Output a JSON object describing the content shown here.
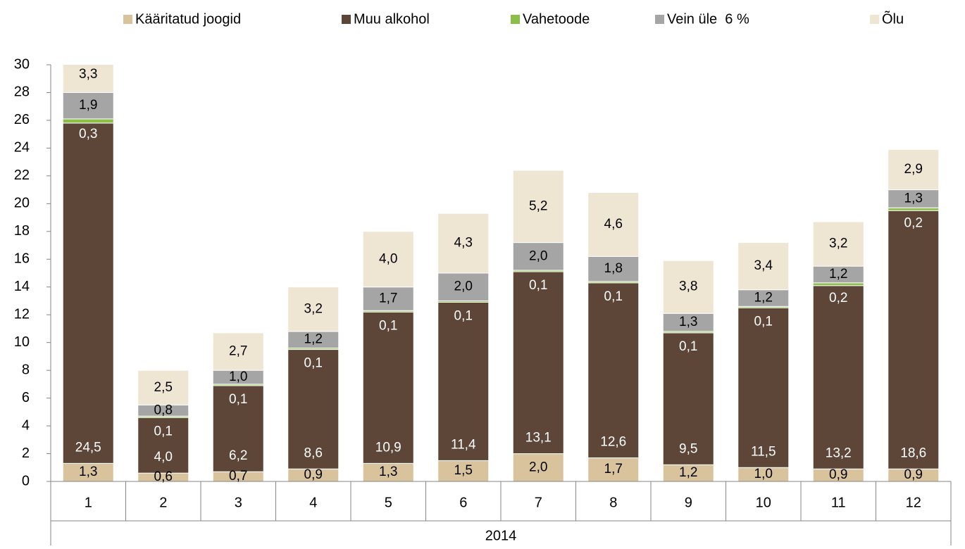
{
  "chart_data": {
    "type": "stacked-bar",
    "categories": [
      "1",
      "2",
      "3",
      "4",
      "5",
      "6",
      "7",
      "8",
      "9",
      "10",
      "11",
      "12"
    ],
    "category_group": "2014",
    "series": [
      {
        "name": "Kääritatud joogid",
        "color": "#d8c39d",
        "values": [
          1.3,
          0.6,
          0.7,
          0.9,
          1.3,
          1.5,
          2.0,
          1.7,
          1.2,
          1.0,
          0.9,
          0.9
        ],
        "value_labels": [
          "1,3",
          "0,6",
          "0,7",
          "0,9",
          "1,3",
          "1,5",
          "2,0",
          "1,7",
          "1,2",
          "1,0",
          "0,9",
          "0,9"
        ]
      },
      {
        "name": "Muu alkohol",
        "color": "#5d4637",
        "values": [
          24.5,
          4.0,
          6.2,
          8.6,
          10.9,
          11.4,
          13.1,
          12.6,
          9.5,
          11.5,
          13.2,
          18.6
        ],
        "value_labels": [
          "24,5",
          "4,0",
          "6,2",
          "8,6",
          "10,9",
          "11,4",
          "13,1",
          "12,6",
          "9,5",
          "11,5",
          "13,2",
          "18,6"
        ]
      },
      {
        "name": "Vahetoode",
        "color": "#8cbf4a",
        "values": [
          0.3,
          0.1,
          0.1,
          0.1,
          0.1,
          0.1,
          0.1,
          0.1,
          0.1,
          0.1,
          0.2,
          0.2
        ],
        "value_labels": [
          "0,3",
          "0,1",
          "0,1",
          "0,1",
          "0,1",
          "0,1",
          "0,1",
          "0,1",
          "0,1",
          "0,1",
          "0,2",
          "0,2"
        ]
      },
      {
        "name": "Vein üle  6 %",
        "color": "#a5a5a5",
        "values": [
          1.9,
          0.8,
          1.0,
          1.2,
          1.7,
          2.0,
          2.0,
          1.8,
          1.3,
          1.2,
          1.2,
          1.3
        ],
        "value_labels": [
          "1,9",
          "0,8",
          "1,0",
          "1,2",
          "1,7",
          "2,0",
          "2,0",
          "1,8",
          "1,3",
          "1,2",
          "1,2",
          "1,3"
        ]
      },
      {
        "name": "Õlu",
        "color": "#eee5d3",
        "values": [
          3.3,
          2.5,
          2.7,
          3.2,
          4.0,
          4.3,
          5.2,
          4.6,
          3.8,
          3.4,
          3.2,
          2.9
        ],
        "value_labels": [
          "3,3",
          "2,5",
          "2,7",
          "3,2",
          "4,0",
          "4,3",
          "5,2",
          "4,6",
          "3,8",
          "3,4",
          "3,2",
          "2,9"
        ]
      }
    ],
    "ylim": [
      0,
      30
    ],
    "yticks": [
      0,
      2,
      4,
      6,
      8,
      10,
      12,
      14,
      16,
      18,
      20,
      22,
      24,
      26,
      28,
      30
    ],
    "grid": false,
    "legend": "top"
  }
}
